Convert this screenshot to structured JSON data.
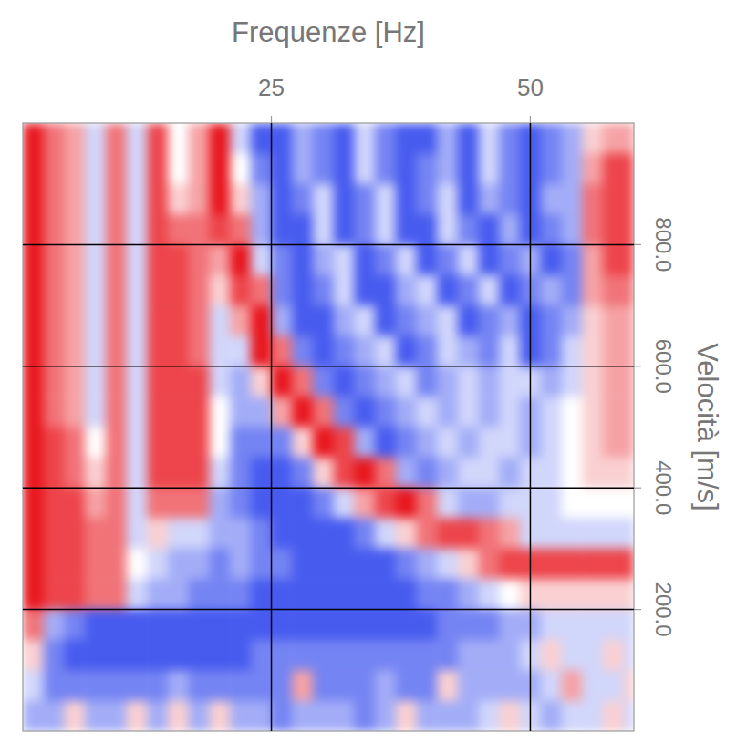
{
  "chart_data": {
    "type": "heatmap",
    "x_label": "Frequenze [Hz]",
    "y_label": "Velocità [m/s]",
    "xlim": [
      1,
      60
    ],
    "ylim": [
      0,
      1000
    ],
    "xticks": [
      25,
      50
    ],
    "yticks": [
      {
        "value": 200,
        "label": "200.0"
      },
      {
        "value": 400,
        "label": "400.0"
      },
      {
        "value": 600,
        "label": "600.0"
      },
      {
        "value": 800,
        "label": "800.0"
      }
    ],
    "grid": true,
    "heatmap": {
      "zlim": [
        -5,
        5
      ],
      "x_edges": [
        1,
        3,
        5,
        7,
        9,
        11,
        13,
        15,
        17,
        19,
        21,
        23,
        25,
        27,
        29,
        31,
        33,
        35,
        37,
        39,
        41,
        43,
        45,
        47,
        49,
        51,
        53,
        55,
        57,
        59,
        60
      ],
      "y_edges": [
        1000,
        950,
        900,
        850,
        800,
        750,
        700,
        650,
        600,
        550,
        500,
        450,
        400,
        350,
        300,
        250,
        200,
        150,
        100,
        50,
        0
      ],
      "values": [
        [
          5,
          3,
          2,
          -1,
          3,
          -1,
          4,
          0,
          2,
          5,
          -1,
          -4,
          -4,
          -2,
          -3,
          -4,
          -1,
          -3,
          -4,
          -4,
          -2,
          -4,
          -1,
          -3,
          -4,
          -3,
          -2,
          1,
          2,
          2
        ],
        [
          5,
          3,
          2,
          -1,
          3,
          -1,
          4,
          0,
          2,
          5,
          0,
          -3,
          -4,
          -2,
          -3,
          -4,
          -1,
          -3,
          -4,
          -3,
          -2,
          -4,
          -1,
          -3,
          -4,
          -3,
          -2,
          2,
          4,
          4
        ],
        [
          5,
          3,
          2,
          -1,
          3,
          -1,
          4,
          1,
          2,
          5,
          1,
          -2,
          -4,
          -3,
          -1,
          -4,
          -3,
          -1,
          -4,
          -3,
          -1,
          -4,
          -2,
          -3,
          -4,
          -2,
          -2,
          3,
          4,
          4
        ],
        [
          5,
          3,
          2,
          -1,
          3,
          -1,
          4,
          3,
          3,
          4,
          3,
          -2,
          -4,
          -4,
          -1,
          -4,
          -3,
          -1,
          -4,
          -4,
          -1,
          -3,
          -4,
          -2,
          -4,
          -3,
          -2,
          3,
          4,
          4
        ],
        [
          5,
          3,
          2,
          -1,
          3,
          -1,
          4,
          4,
          3,
          2,
          5,
          -1,
          -3,
          -4,
          -2,
          -1,
          -4,
          -3,
          -1,
          -4,
          -3,
          -1,
          -4,
          -3,
          -2,
          -4,
          -3,
          2,
          4,
          4
        ],
        [
          5,
          3,
          2,
          -1,
          3,
          -1,
          4,
          4,
          3,
          1,
          4,
          3,
          -3,
          -4,
          -3,
          -1,
          -4,
          -4,
          -2,
          -1,
          -4,
          -3,
          -1,
          -4,
          -3,
          -2,
          -3,
          2,
          3,
          3
        ],
        [
          5,
          3,
          2,
          -1,
          3,
          -1,
          4,
          4,
          3,
          -1,
          2,
          5,
          -2,
          -4,
          -4,
          -2,
          -1,
          -4,
          -3,
          -2,
          -1,
          -4,
          -3,
          -2,
          -4,
          -3,
          -2,
          1,
          2,
          2
        ],
        [
          5,
          3,
          2,
          -1,
          3,
          -1,
          4,
          4,
          3,
          -1,
          -1,
          5,
          3,
          -3,
          -4,
          -3,
          -2,
          -1,
          -4,
          -3,
          -1,
          -2,
          -3,
          -1,
          -4,
          -3,
          -1,
          1,
          2,
          2
        ],
        [
          5,
          3,
          2,
          -1,
          3,
          -1,
          4,
          4,
          4,
          -1,
          -2,
          1,
          5,
          3,
          -3,
          -4,
          -3,
          -2,
          -1,
          -3,
          -2,
          -1,
          -2,
          -1,
          -1,
          -2,
          -1,
          1,
          2,
          2
        ],
        [
          5,
          3,
          2,
          -1,
          3,
          -1,
          4,
          4,
          4,
          0,
          -2,
          -2,
          2,
          5,
          3,
          -3,
          -4,
          -3,
          -2,
          -1,
          -2,
          -1,
          -2,
          -1,
          -2,
          -1,
          0,
          1,
          2,
          2
        ],
        [
          5,
          4,
          3,
          0,
          3,
          -1,
          4,
          4,
          4,
          0,
          -3,
          -3,
          -3,
          1,
          5,
          4,
          -2,
          -4,
          -3,
          -2,
          -1,
          -2,
          -1,
          -1,
          -2,
          -1,
          0,
          1,
          2,
          2
        ],
        [
          5,
          4,
          3,
          1,
          3,
          -1,
          4,
          4,
          4,
          -1,
          -3,
          -4,
          -4,
          -3,
          1,
          4,
          5,
          3,
          -2,
          -3,
          -2,
          -1,
          -1,
          -2,
          -1,
          -1,
          0,
          1,
          1,
          1
        ],
        [
          5,
          4,
          4,
          2,
          3,
          -1,
          3,
          3,
          3,
          -2,
          -3,
          -4,
          -4,
          -4,
          -3,
          -1,
          2,
          4,
          5,
          3,
          -1,
          -2,
          -2,
          -1,
          -1,
          -1,
          0,
          0,
          0,
          0
        ],
        [
          5,
          4,
          4,
          3,
          3,
          -1,
          1,
          -1,
          -1,
          -2,
          -2,
          -3,
          -4,
          -4,
          -4,
          -4,
          -3,
          -1,
          1,
          3,
          4,
          4,
          3,
          2,
          -1,
          -1,
          -1,
          -1,
          -1,
          -1
        ],
        [
          5,
          4,
          4,
          3,
          3,
          0,
          -1,
          -2,
          -2,
          -3,
          -2,
          -3,
          -3,
          -4,
          -4,
          -4,
          -4,
          -4,
          -3,
          -2,
          -1,
          1,
          3,
          4,
          4,
          4,
          4,
          4,
          4,
          4
        ],
        [
          5,
          4,
          4,
          3,
          3,
          -1,
          -2,
          -2,
          -3,
          -3,
          -3,
          -4,
          -4,
          -4,
          -4,
          -4,
          -4,
          -4,
          -4,
          -3,
          -3,
          -2,
          -1,
          0,
          1,
          1,
          1,
          1,
          1,
          1
        ],
        [
          3,
          -2,
          -3,
          -4,
          -4,
          -4,
          -4,
          -4,
          -4,
          -4,
          -4,
          -4,
          -4,
          -4,
          -4,
          -4,
          -4,
          -4,
          -4,
          -4,
          -3,
          -3,
          -3,
          -2,
          -2,
          -1,
          -1,
          -1,
          -1,
          -1
        ],
        [
          1,
          -3,
          -4,
          -4,
          -4,
          -4,
          -4,
          -4,
          -4,
          -4,
          -4,
          -3,
          -3,
          -3,
          -3,
          -3,
          -3,
          -3,
          -3,
          -3,
          -3,
          -2,
          -2,
          -2,
          -1,
          1,
          -1,
          -1,
          1,
          -1
        ],
        [
          -1,
          -3,
          -3,
          -3,
          -3,
          -3,
          -3,
          -2,
          -3,
          -3,
          -3,
          -3,
          -3,
          2,
          -3,
          -3,
          -3,
          -2,
          -3,
          -3,
          1,
          -2,
          -2,
          -2,
          -2,
          -1,
          2,
          -1,
          -1,
          1
        ],
        [
          -2,
          -2,
          1,
          -2,
          -2,
          1,
          -2,
          1,
          -2,
          1,
          -2,
          -2,
          -3,
          -2,
          -2,
          -2,
          -3,
          -2,
          1,
          -2,
          -2,
          -2,
          -1,
          1,
          -1,
          -2,
          -1,
          -1,
          1,
          -1
        ]
      ]
    }
  }
}
